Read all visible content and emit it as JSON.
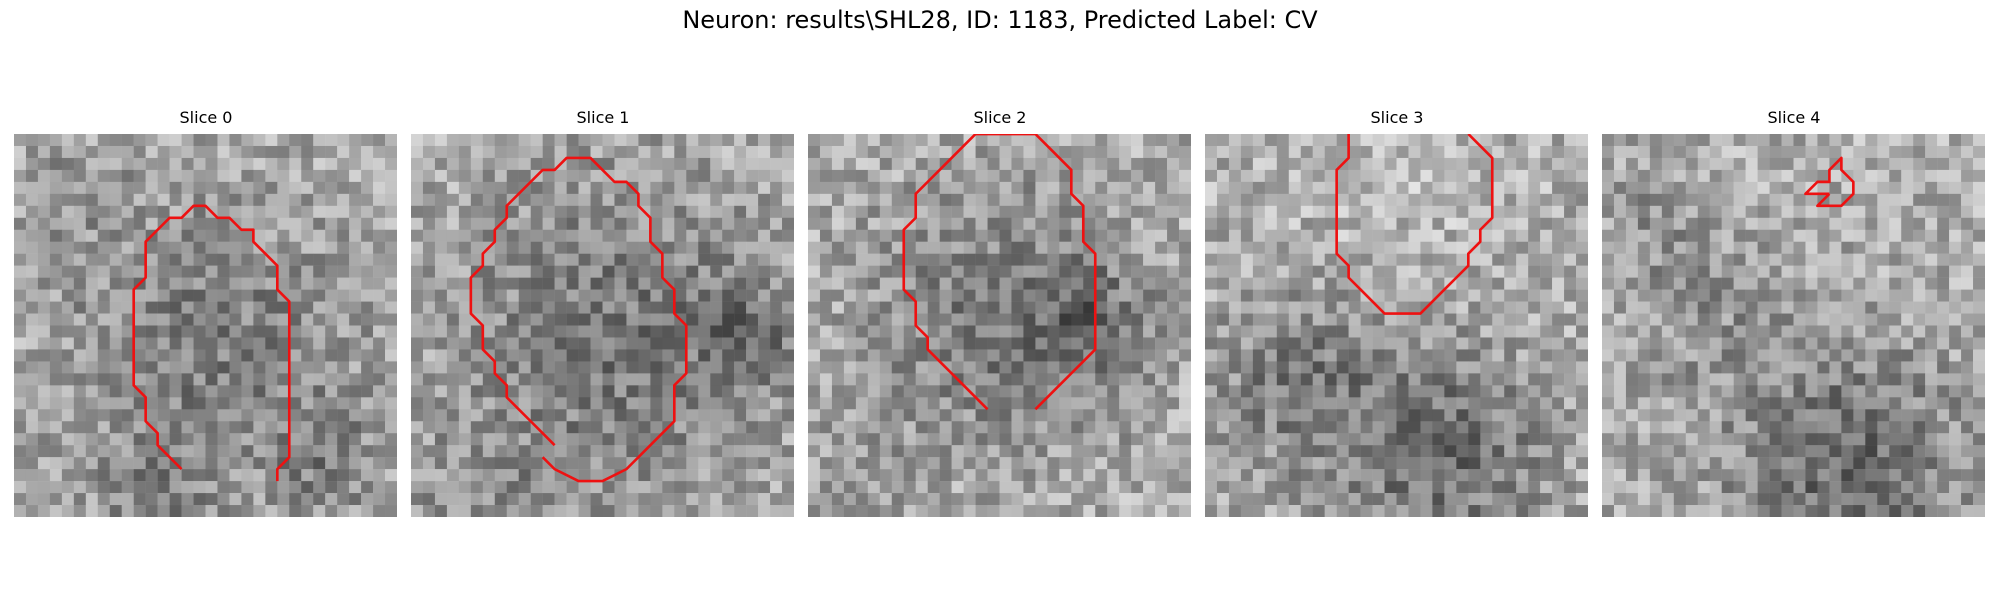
{
  "figure": {
    "title": "Neuron: results\\SHL28, ID: 1183, Predicted Label: CV"
  },
  "colors": {
    "contour": "#ee1111"
  },
  "slices": [
    {
      "title": "Slice 0",
      "seed": 11,
      "blobs": [
        [
          16,
          18,
          9,
          -50
        ],
        [
          4,
          4,
          4,
          -20
        ],
        [
          26,
          27,
          3,
          -35
        ],
        [
          11,
          30,
          3,
          -30
        ]
      ],
      "contour": [
        [
          14,
          28
        ],
        [
          12,
          26
        ],
        [
          12,
          25
        ],
        [
          11,
          24
        ],
        [
          11,
          22
        ],
        [
          10,
          21
        ],
        [
          10,
          13
        ],
        [
          11,
          12
        ],
        [
          11,
          9
        ],
        [
          12,
          8
        ],
        [
          13,
          7
        ],
        [
          14,
          7
        ],
        [
          15,
          6
        ],
        [
          16,
          6
        ],
        [
          17,
          7
        ],
        [
          18,
          7
        ],
        [
          19,
          8
        ],
        [
          20,
          8
        ],
        [
          20,
          9
        ],
        [
          21,
          10
        ],
        [
          22,
          11
        ],
        [
          22,
          13
        ],
        [
          23,
          14
        ],
        [
          23,
          27
        ],
        [
          22,
          28
        ],
        [
          22,
          29
        ]
      ]
    },
    {
      "title": "Slice 1",
      "seed": 23,
      "blobs": [
        [
          17,
          17,
          10,
          -55
        ],
        [
          28,
          16,
          3,
          -40
        ],
        [
          5,
          30,
          4,
          -25
        ]
      ],
      "contour": [
        [
          12,
          26
        ],
        [
          11,
          25
        ],
        [
          10,
          24
        ],
        [
          9,
          23
        ],
        [
          8,
          22
        ],
        [
          8,
          21
        ],
        [
          7,
          20
        ],
        [
          7,
          19
        ],
        [
          6,
          18
        ],
        [
          6,
          16
        ],
        [
          5,
          15
        ],
        [
          5,
          12
        ],
        [
          6,
          11
        ],
        [
          6,
          10
        ],
        [
          7,
          9
        ],
        [
          7,
          8
        ],
        [
          8,
          7
        ],
        [
          8,
          6
        ],
        [
          9,
          5
        ],
        [
          10,
          4
        ],
        [
          11,
          3
        ],
        [
          12,
          3
        ],
        [
          13,
          2
        ],
        [
          15,
          2
        ],
        [
          16,
          3
        ],
        [
          17,
          4
        ],
        [
          18,
          4
        ],
        [
          19,
          5
        ],
        [
          19,
          6
        ],
        [
          20,
          7
        ],
        [
          20,
          9
        ],
        [
          21,
          10
        ],
        [
          21,
          12
        ],
        [
          22,
          13
        ],
        [
          22,
          15
        ],
        [
          23,
          16
        ],
        [
          23,
          20
        ],
        [
          22,
          21
        ],
        [
          22,
          24
        ],
        [
          21,
          25
        ],
        [
          20,
          26
        ],
        [
          19,
          27
        ],
        [
          18,
          28
        ],
        [
          16,
          29
        ],
        [
          14,
          29
        ],
        [
          12,
          28
        ],
        [
          11,
          27
        ]
      ]
    },
    {
      "title": "Slice 2",
      "seed": 37,
      "blobs": [
        [
          16,
          15,
          8,
          -55
        ],
        [
          23,
          15,
          3,
          -45
        ],
        [
          3,
          27,
          3,
          -20
        ]
      ],
      "contour": [
        [
          15,
          23
        ],
        [
          14,
          22
        ],
        [
          13,
          21
        ],
        [
          12,
          20
        ],
        [
          11,
          19
        ],
        [
          10,
          18
        ],
        [
          10,
          17
        ],
        [
          9,
          16
        ],
        [
          9,
          14
        ],
        [
          8,
          13
        ],
        [
          8,
          8
        ],
        [
          9,
          7
        ],
        [
          9,
          5
        ],
        [
          10,
          4
        ],
        [
          11,
          3
        ],
        [
          12,
          2
        ],
        [
          13,
          1
        ],
        [
          14,
          0
        ],
        [
          19,
          0
        ],
        [
          20,
          1
        ],
        [
          21,
          2
        ],
        [
          22,
          3
        ],
        [
          22,
          5
        ],
        [
          23,
          6
        ],
        [
          23,
          9
        ],
        [
          24,
          10
        ],
        [
          24,
          18
        ],
        [
          23,
          19
        ],
        [
          22,
          20
        ],
        [
          21,
          21
        ],
        [
          20,
          22
        ],
        [
          19,
          23
        ]
      ]
    },
    {
      "title": "Slice 3",
      "seed": 53,
      "blobs": [
        [
          7,
          20,
          5,
          -50
        ],
        [
          19,
          26,
          6,
          -70
        ],
        [
          15,
          2,
          5,
          18
        ]
      ],
      "contour": [
        [
          12,
          0
        ],
        [
          12,
          2
        ],
        [
          11,
          3
        ],
        [
          11,
          10
        ],
        [
          12,
          11
        ],
        [
          12,
          12
        ],
        [
          13,
          13
        ],
        [
          14,
          14
        ],
        [
          15,
          15
        ],
        [
          18,
          15
        ],
        [
          19,
          14
        ],
        [
          20,
          13
        ],
        [
          21,
          12
        ],
        [
          22,
          11
        ],
        [
          22,
          10
        ],
        [
          23,
          9
        ],
        [
          23,
          8
        ],
        [
          24,
          7
        ],
        [
          24,
          2
        ],
        [
          23,
          1
        ],
        [
          22,
          0
        ]
      ]
    },
    {
      "title": "Slice 4",
      "seed": 71,
      "blobs": [
        [
          20,
          27,
          7,
          -70
        ],
        [
          8,
          14,
          5,
          -25
        ],
        [
          4,
          6,
          4,
          -20
        ]
      ],
      "contour": [
        [
          19,
          5
        ],
        [
          18,
          5
        ],
        [
          17,
          5
        ],
        [
          18,
          4
        ],
        [
          19,
          4
        ],
        [
          19,
          3
        ],
        [
          20,
          2
        ],
        [
          20,
          3
        ],
        [
          21,
          4
        ],
        [
          21,
          5
        ],
        [
          20,
          6
        ],
        [
          19,
          6
        ],
        [
          18,
          6
        ],
        [
          19,
          5
        ]
      ]
    }
  ]
}
